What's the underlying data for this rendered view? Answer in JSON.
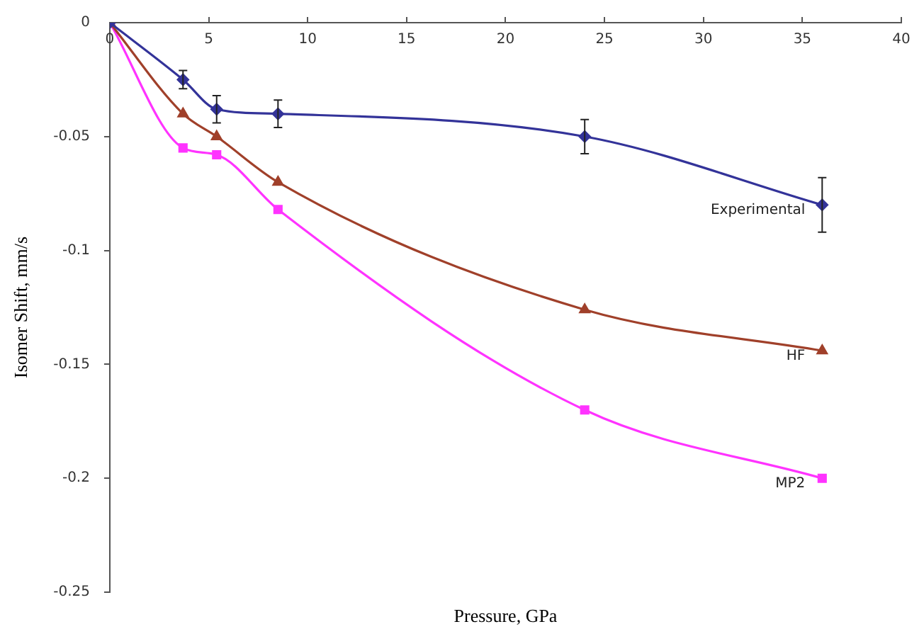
{
  "chart_data": {
    "type": "line",
    "xlabel": "Pressure, GPa",
    "ylabel": "Isomer Shift, mm/s",
    "xlim": [
      0,
      40
    ],
    "xticks": [
      0,
      5,
      10,
      15,
      20,
      25,
      30,
      35,
      40
    ],
    "ylim": [
      -0.25,
      0
    ],
    "yticks": [
      -0.25,
      -0.2,
      -0.15,
      -0.1,
      -0.05,
      0
    ],
    "grid": false,
    "legend": false,
    "series": [
      {
        "name": "Experimental",
        "color": "#333399",
        "marker": "diamond",
        "x": [
          0,
          3.7,
          5.4,
          8.5,
          24,
          36
        ],
        "values": [
          0,
          -0.025,
          -0.038,
          -0.04,
          -0.05,
          -0.08
        ],
        "errors": [
          null,
          0.004,
          0.006,
          0.006,
          0.0075,
          0.012
        ]
      },
      {
        "name": "HF",
        "color": "#a0402a",
        "marker": "triangle",
        "x": [
          0,
          3.7,
          5.4,
          8.5,
          24,
          36
        ],
        "values": [
          0,
          -0.04,
          -0.05,
          -0.07,
          -0.126,
          -0.144
        ]
      },
      {
        "name": "MP2",
        "color": "#ff33ff",
        "marker": "square",
        "x": [
          0,
          3.7,
          5.4,
          8.5,
          24,
          36
        ],
        "values": [
          0,
          -0.055,
          -0.058,
          -0.082,
          -0.17,
          -0.2
        ]
      }
    ]
  }
}
